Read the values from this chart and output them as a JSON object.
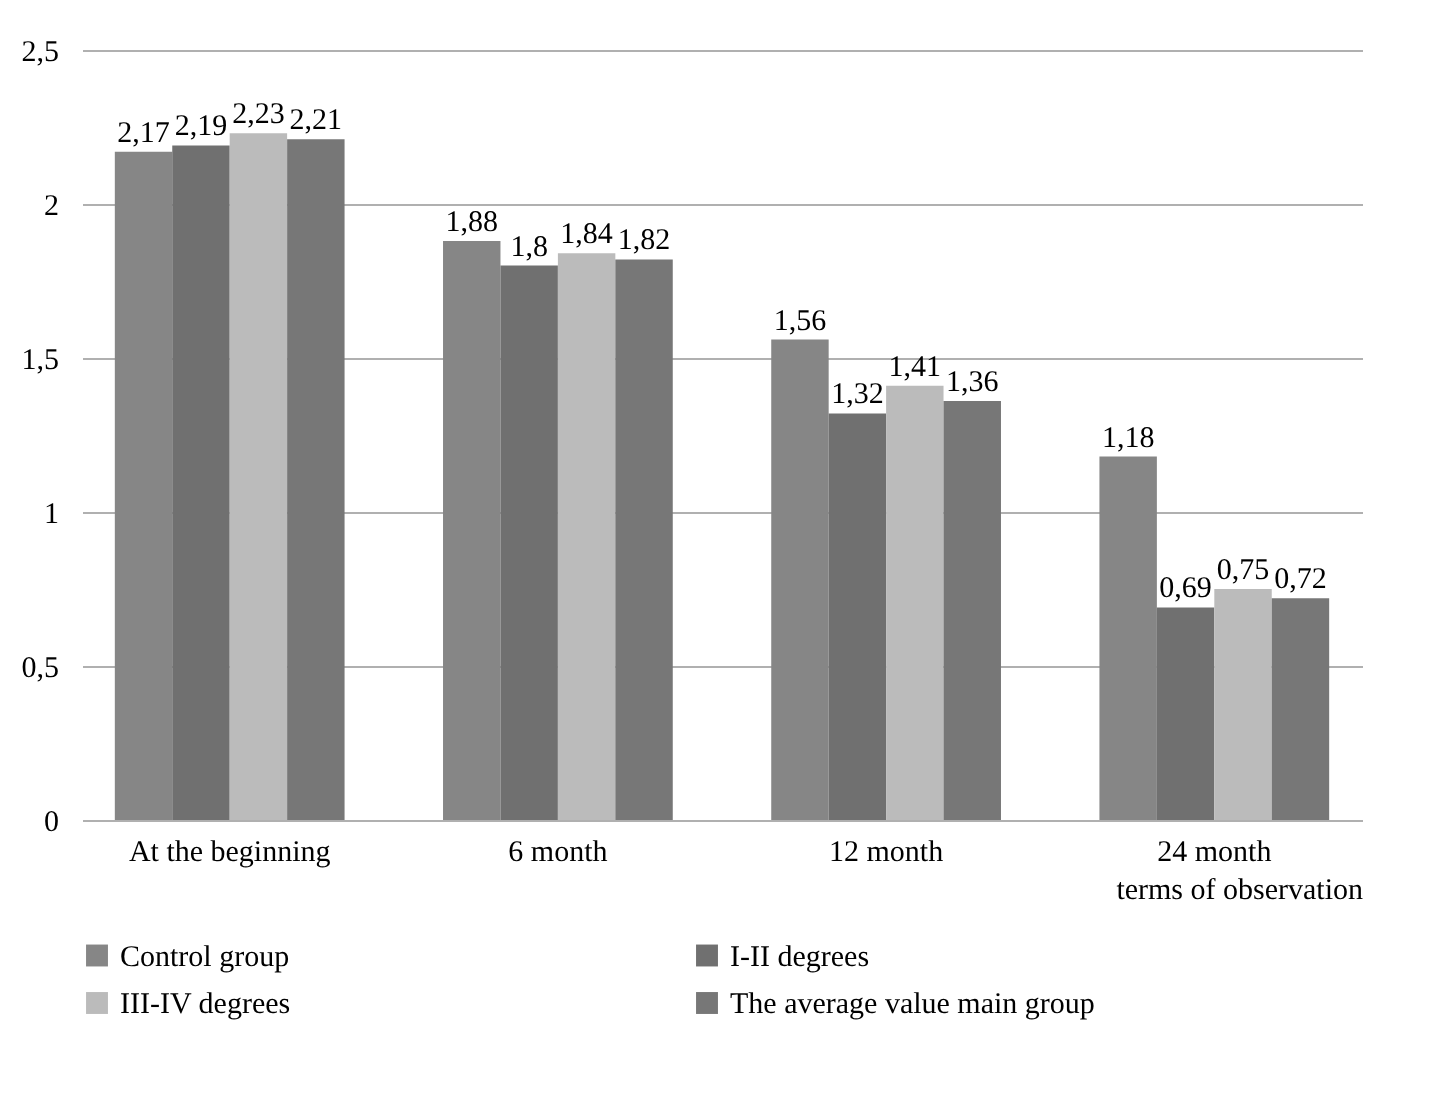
{
  "chart_data": {
    "type": "bar",
    "categories": [
      "At the beginning",
      "6 month",
      "12 month",
      "24 month"
    ],
    "xlabel": "terms of observation",
    "series": [
      {
        "name": "Control group",
        "color": "#868686",
        "values": [
          2.17,
          1.88,
          1.56,
          1.18
        ],
        "value_labels": [
          "2,17",
          "1,88",
          "1,56",
          "1,18"
        ]
      },
      {
        "name": "I-II degrees",
        "color": "#707070",
        "values": [
          2.19,
          1.8,
          1.32,
          0.69
        ],
        "value_labels": [
          "2,19",
          "1,8",
          "1,32",
          "0,69"
        ]
      },
      {
        "name": "III-IV degrees",
        "color": "#bbbbbb",
        "values": [
          2.23,
          1.84,
          1.41,
          0.75
        ],
        "value_labels": [
          "2,23",
          "1,84",
          "1,41",
          "0,75"
        ]
      },
      {
        "name": "The average value main group",
        "color": "#777777",
        "values": [
          2.21,
          1.82,
          1.36,
          0.72
        ],
        "value_labels": [
          "2,21",
          "1,82",
          "1,36",
          "0,72"
        ]
      }
    ],
    "ylim": [
      0,
      2.5
    ],
    "yticks": [
      0,
      {
        "value": 0.5,
        "label": "0,5"
      },
      1,
      {
        "value": 1.5,
        "label": "1,5"
      },
      2,
      {
        "value": 2.5,
        "label": "2,5"
      }
    ],
    "grid": "y",
    "legend": "bottom"
  }
}
